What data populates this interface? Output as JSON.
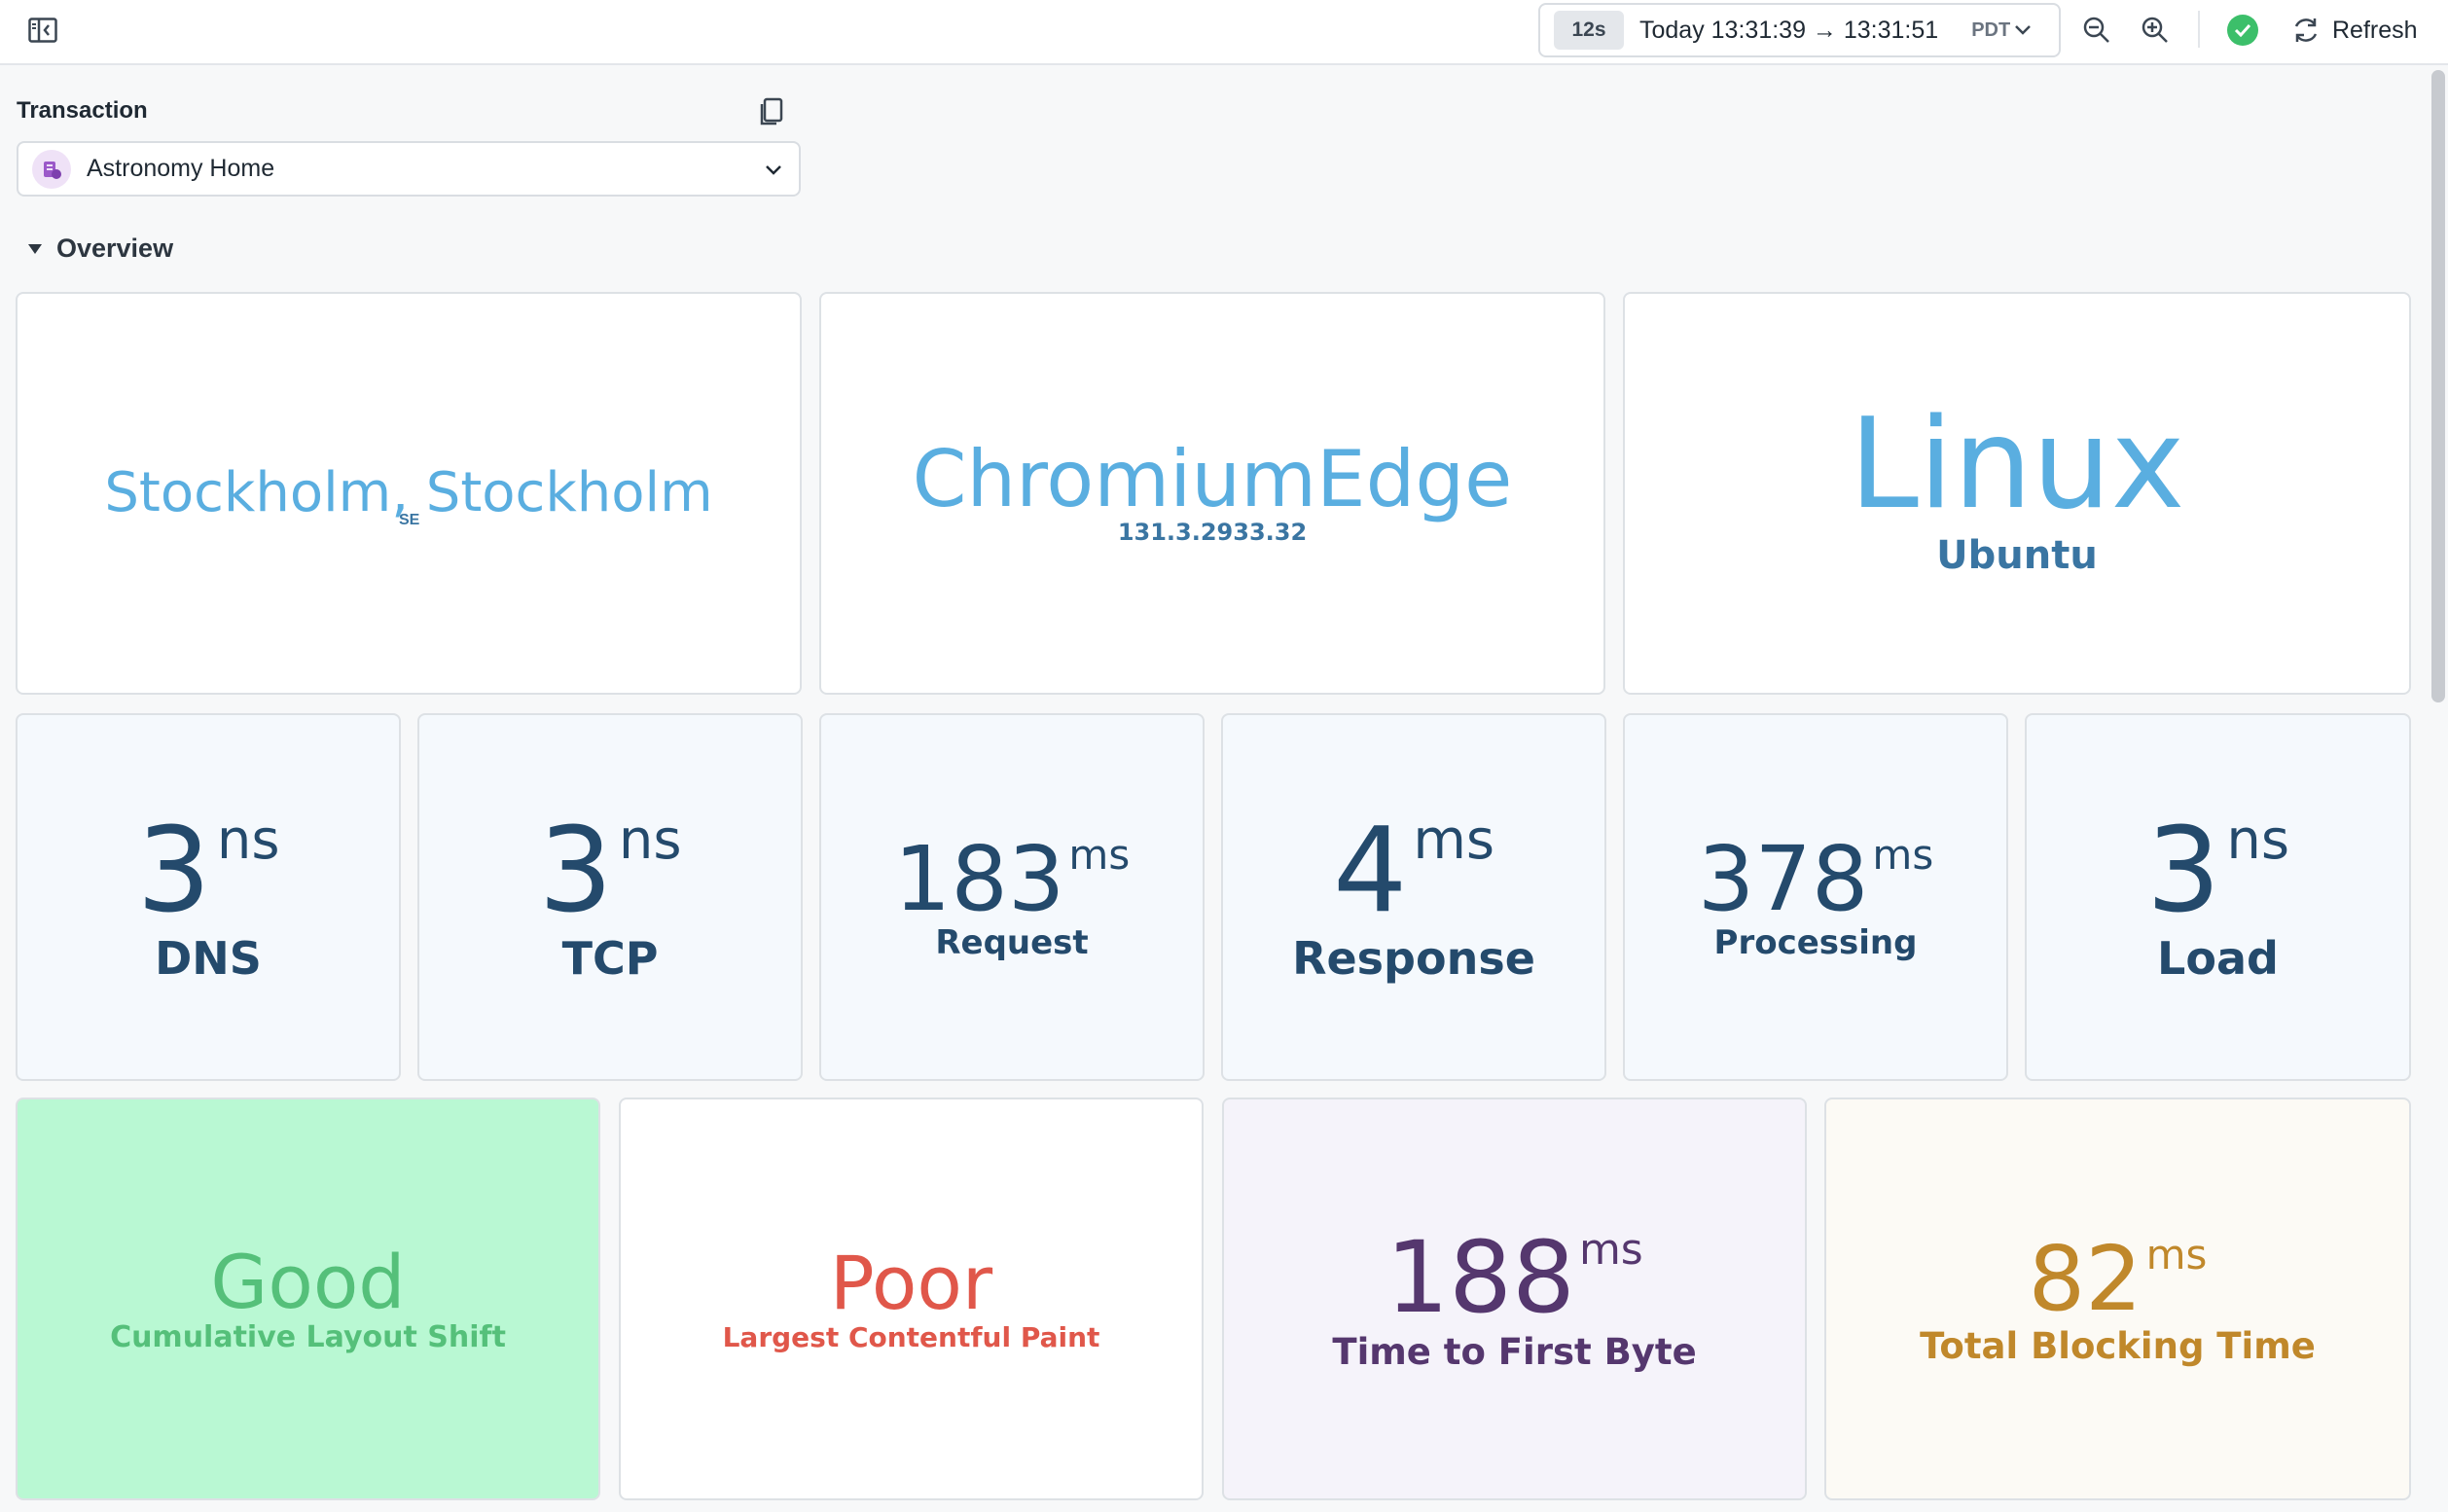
{
  "toolbar": {
    "duration_badge": "12s",
    "time_range": "Today 13:31:39 → 13:31:51",
    "timezone": "PDT",
    "refresh_label": "Refresh",
    "status_color": "#3cbf6a"
  },
  "transaction": {
    "label": "Transaction",
    "selected": "Astronomy Home"
  },
  "overview": {
    "label": "Overview"
  },
  "geo": {
    "city": "Stockholm, Stockholm",
    "country": "SE"
  },
  "browser": {
    "name": "ChromiumEdge",
    "version": "131.3.2933.32"
  },
  "os": {
    "name": "Linux",
    "distro": "Ubuntu"
  },
  "timings": [
    {
      "value": "3",
      "unit": "ns",
      "label": "DNS"
    },
    {
      "value": "3",
      "unit": "ns",
      "label": "TCP"
    },
    {
      "value": "183",
      "unit": "ms",
      "label": "Request"
    },
    {
      "value": "4",
      "unit": "ms",
      "label": "Response"
    },
    {
      "value": "378",
      "unit": "ms",
      "label": "Processing"
    },
    {
      "value": "3",
      "unit": "ns",
      "label": "Load"
    }
  ],
  "vitals": [
    {
      "value": "Good",
      "label": "Cumulative Layout Shift",
      "color": "#55c07a"
    },
    {
      "value": "Poor",
      "label": "Largest Contentful Paint",
      "color": "#e0574a"
    },
    {
      "value": "188",
      "unit": "ms",
      "label": "Time to First Byte",
      "color": "#55376e"
    },
    {
      "value": "82",
      "unit": "ms",
      "label": "Total Blocking Time",
      "color": "#c0882b"
    }
  ],
  "colors": {
    "accent_blue": "#5aaee0",
    "dark_blue": "#3a75a2",
    "navy": "#244a6c"
  }
}
